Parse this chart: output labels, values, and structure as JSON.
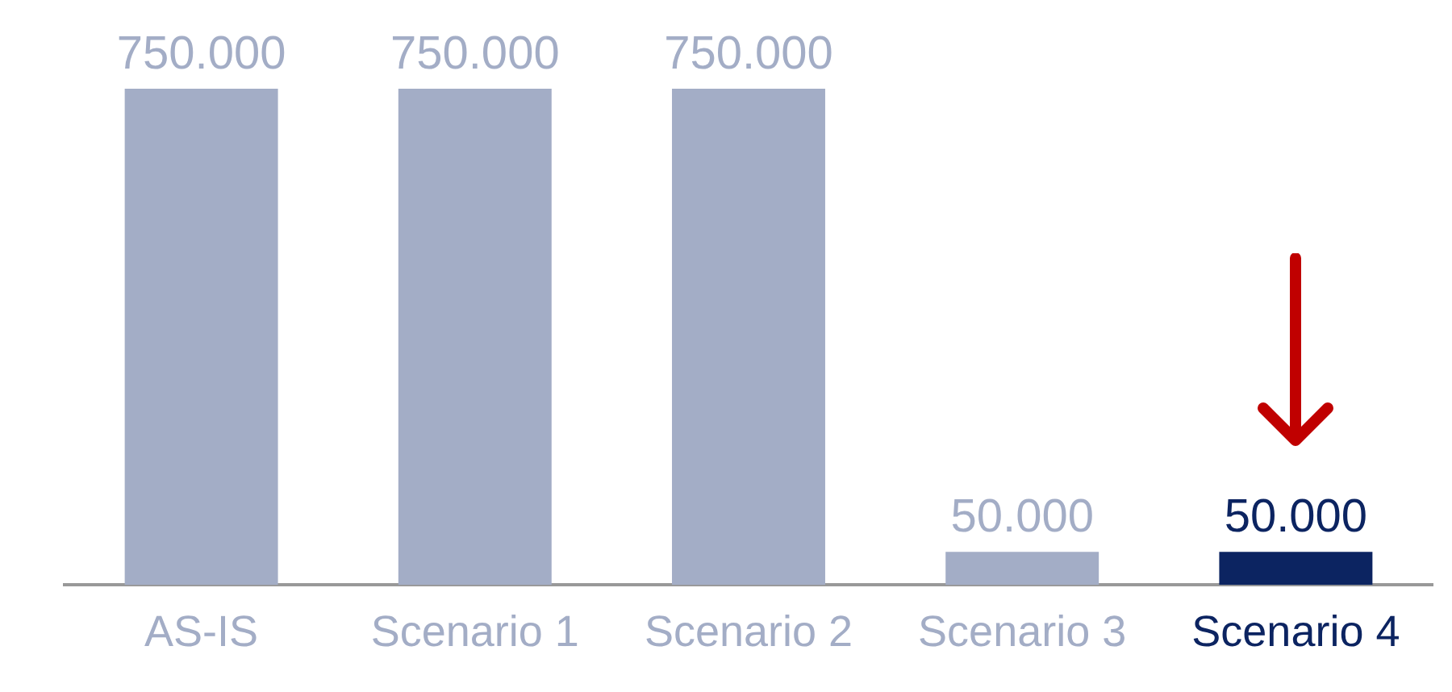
{
  "chart_data": {
    "type": "bar",
    "categories": [
      "AS-IS",
      "Scenario 1",
      "Scenario 2",
      "Scenario 3",
      "Scenario 4"
    ],
    "values": [
      750000,
      750000,
      750000,
      50000,
      50000
    ],
    "value_labels": [
      "750.000",
      "750.000",
      "750.000",
      "50.000",
      "50.000"
    ],
    "colors": [
      "#a3adc6",
      "#a3adc6",
      "#a3adc6",
      "#a3adc6",
      "#0c2461"
    ],
    "grid": false,
    "legend": false
  }
}
